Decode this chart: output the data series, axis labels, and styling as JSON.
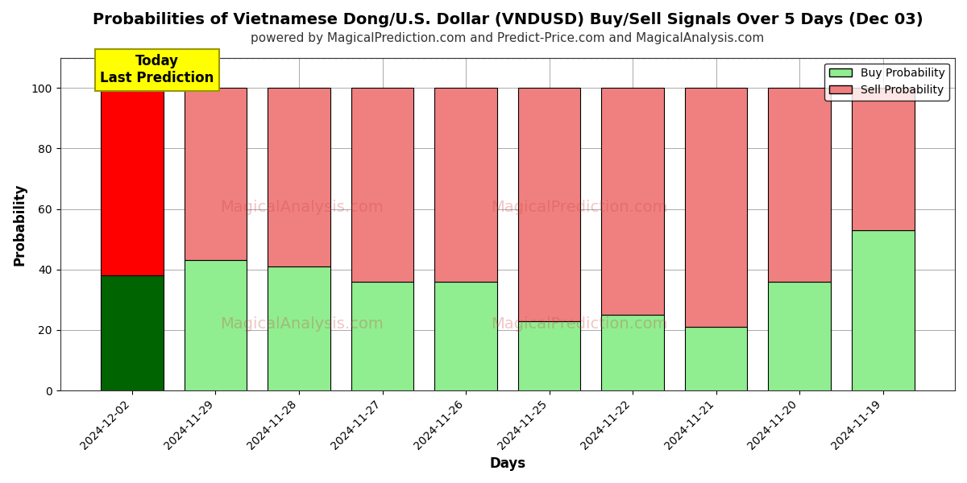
{
  "title": "Probabilities of Vietnamese Dong/U.S. Dollar (VNDUSD) Buy/Sell Signals Over 5 Days (Dec 03)",
  "subtitle": "powered by MagicalPrediction.com and Predict-Price.com and MagicalAnalysis.com",
  "xlabel": "Days",
  "ylabel": "Probability",
  "categories": [
    "2024-12-02",
    "2024-11-29",
    "2024-11-28",
    "2024-11-27",
    "2024-11-26",
    "2024-11-25",
    "2024-11-22",
    "2024-11-21",
    "2024-11-20",
    "2024-11-19"
  ],
  "buy_values": [
    38,
    43,
    41,
    36,
    36,
    23,
    25,
    21,
    36,
    53
  ],
  "sell_values": [
    62,
    57,
    59,
    64,
    64,
    77,
    75,
    79,
    64,
    47
  ],
  "buy_color_today": "#006400",
  "sell_color_today": "#FF0000",
  "buy_color_rest": "#90EE90",
  "sell_color_rest": "#F08080",
  "bar_edgecolor": "#000000",
  "ylim_max": 110,
  "yticks": [
    0,
    20,
    40,
    60,
    80,
    100
  ],
  "dashed_line_y": 110,
  "watermark1": "MagicalAnalysis.com",
  "watermark2": "MagicalPrediction.com",
  "legend_buy": "Buy Probability",
  "legend_sell": "Sell Probability",
  "today_label": "Today\nLast Prediction",
  "today_box_color": "#FFFF00",
  "today_box_edge": "#999900",
  "grid_color": "#aaaaaa",
  "background_color": "#ffffff",
  "title_fontsize": 14,
  "subtitle_fontsize": 11,
  "axis_label_fontsize": 12,
  "tick_fontsize": 10,
  "bar_width": 0.75
}
